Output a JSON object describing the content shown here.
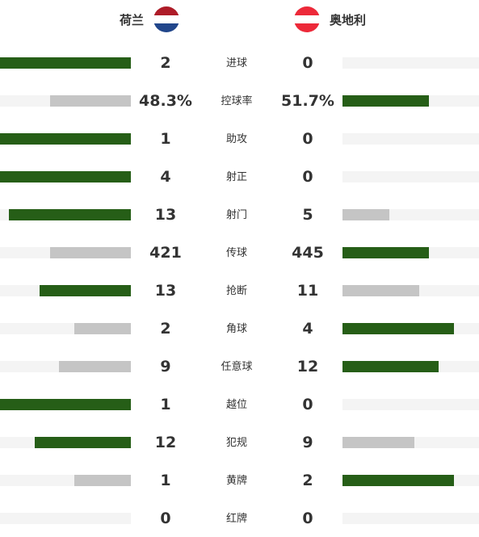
{
  "colors": {
    "leading": "#265e17",
    "trailing": "#c5c5c5",
    "track": "#f4f4f4"
  },
  "home": {
    "name": "荷兰",
    "flag_icon": "netherlands-flag-icon",
    "flag_colors": [
      "#ae1c28",
      "#ffffff",
      "#21468b"
    ]
  },
  "away": {
    "name": "奥地利",
    "flag_icon": "austria-flag-icon",
    "flag_colors": [
      "#ed2939",
      "#ffffff",
      "#ed2939"
    ]
  },
  "stats": [
    {
      "label": "进球",
      "home": "2",
      "away": "0",
      "home_ratio": 1.0,
      "away_ratio": 0.0,
      "leader": "home"
    },
    {
      "label": "控球率",
      "home": "48.3%",
      "away": "51.7%",
      "home_ratio": 0.617,
      "away_ratio": 0.633,
      "leader": "away"
    },
    {
      "label": "助攻",
      "home": "1",
      "away": "0",
      "home_ratio": 1.0,
      "away_ratio": 0.0,
      "leader": "home"
    },
    {
      "label": "射正",
      "home": "4",
      "away": "0",
      "home_ratio": 1.0,
      "away_ratio": 0.0,
      "leader": "home"
    },
    {
      "label": "射门",
      "home": "13",
      "away": "5",
      "home_ratio": 0.932,
      "away_ratio": 0.343,
      "leader": "home"
    },
    {
      "label": "传球",
      "home": "421",
      "away": "445",
      "home_ratio": 0.617,
      "away_ratio": 0.633,
      "leader": "away"
    },
    {
      "label": "抢断",
      "home": "13",
      "away": "11",
      "home_ratio": 0.698,
      "away_ratio": 0.562,
      "leader": "home"
    },
    {
      "label": "角球",
      "home": "2",
      "away": "4",
      "home_ratio": 0.432,
      "away_ratio": 0.817,
      "leader": "away"
    },
    {
      "label": "任意球",
      "home": "9",
      "away": "12",
      "home_ratio": 0.549,
      "away_ratio": 0.704,
      "leader": "away"
    },
    {
      "label": "越位",
      "home": "1",
      "away": "0",
      "home_ratio": 1.0,
      "away_ratio": 0.0,
      "leader": "home"
    },
    {
      "label": "犯规",
      "home": "12",
      "away": "9",
      "home_ratio": 0.735,
      "away_ratio": 0.527,
      "leader": "home"
    },
    {
      "label": "黄牌",
      "home": "1",
      "away": "2",
      "home_ratio": 0.432,
      "away_ratio": 0.817,
      "leader": "away"
    },
    {
      "label": "红牌",
      "home": "0",
      "away": "0",
      "home_ratio": 0.0,
      "away_ratio": 0.0,
      "leader": "none"
    }
  ]
}
